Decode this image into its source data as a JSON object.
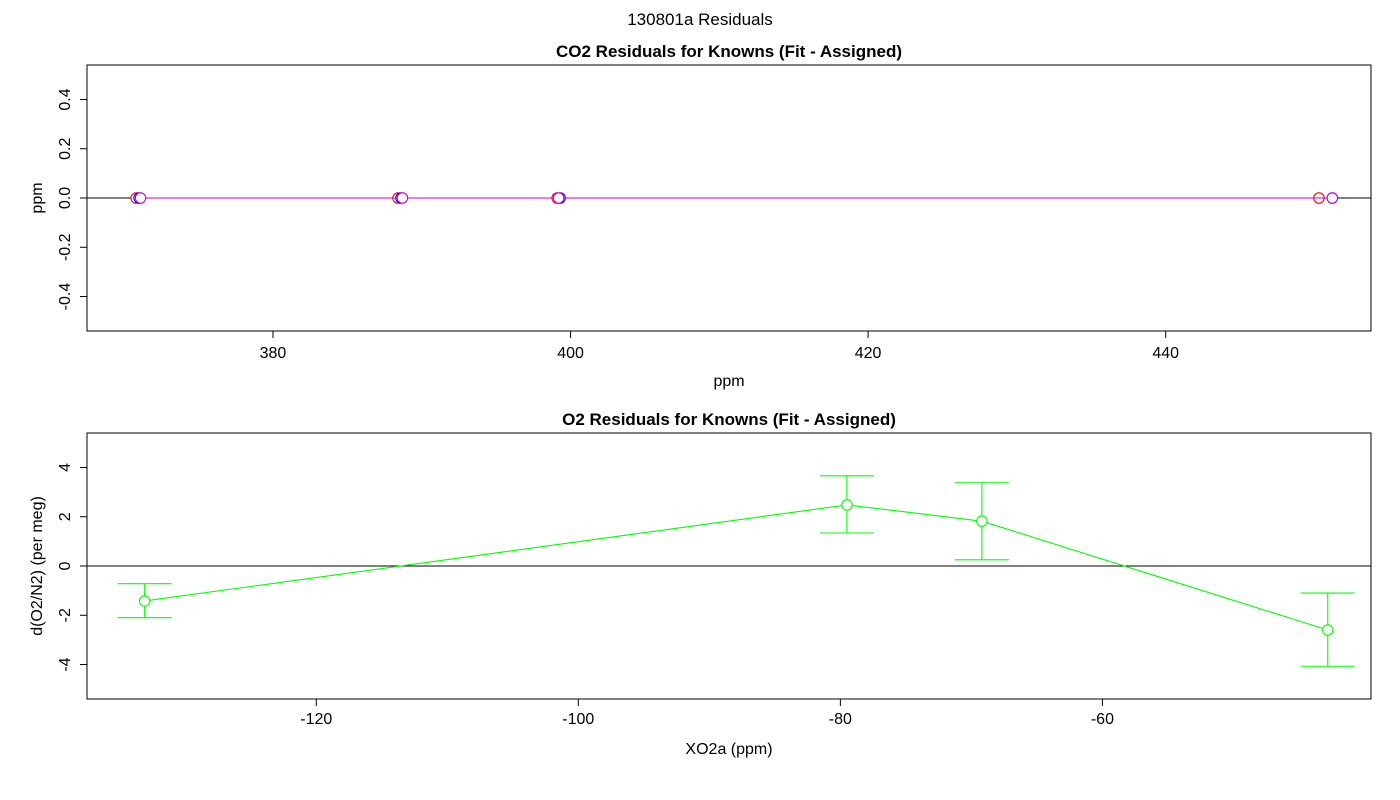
{
  "figure_title": "130801a  Residuals",
  "chart_data": [
    {
      "type": "scatter",
      "title": "CO2 Residuals for Knowns (Fit - Assigned)",
      "xlabel": "ppm",
      "ylabel": "ppm",
      "xlim": [
        367.5,
        453.8
      ],
      "ylim": [
        -0.54,
        0.54
      ],
      "xticks": [
        380,
        400,
        420,
        440
      ],
      "yticks": [
        -0.4,
        -0.2,
        0.0,
        0.2,
        0.4
      ],
      "xtick_labels": [
        "380",
        "400",
        "420",
        "440"
      ],
      "ytick_labels": [
        "-0.4",
        "-0.2",
        "0.0",
        "0.2",
        "0.4"
      ],
      "reference_line_y": 0,
      "series": [
        {
          "color": "#ff0000",
          "marker": "open-circle",
          "line": true,
          "x": [
            370.8,
            388.4,
            399.1,
            450.3
          ],
          "y": [
            0,
            0,
            0,
            0
          ]
        },
        {
          "color": "#0000ff",
          "marker": "open-circle",
          "line": true,
          "x": [
            371.0,
            388.6,
            399.3,
            451.2
          ],
          "y": [
            0,
            0,
            0,
            0
          ]
        },
        {
          "color": "#cc00cc",
          "marker": "open-circle",
          "line": true,
          "x": [
            371.1,
            388.7,
            399.2,
            451.2
          ],
          "y": [
            0,
            0,
            0,
            0
          ]
        }
      ]
    },
    {
      "type": "line",
      "title": "O2 Residuals for Knowns (Fit - Assigned)",
      "xlabel": "XO2a (ppm)",
      "ylabel": "d(O2/N2) (per meg)",
      "xlim": [
        -137.5,
        -39.5
      ],
      "ylim": [
        -5.4,
        5.4
      ],
      "xticks": [
        -120,
        -100,
        -80,
        -60
      ],
      "yticks": [
        -4,
        -2,
        0,
        2,
        4
      ],
      "xtick_labels": [
        "-120",
        "-100",
        "-80",
        "-60"
      ],
      "ytick_labels": [
        "-4",
        "-2",
        "0",
        "2",
        "4"
      ],
      "reference_line_y": 0,
      "series": [
        {
          "color": "#00ff00",
          "marker": "open-circle",
          "error_bars": true,
          "x": [
            -133.1,
            -79.5,
            -69.2,
            -42.8
          ],
          "y": [
            -1.42,
            2.48,
            1.82,
            -2.6
          ],
          "y_low": [
            -2.1,
            1.34,
            0.25,
            -4.07
          ],
          "y_high": [
            -0.72,
            3.66,
            3.38,
            -1.1
          ]
        }
      ]
    }
  ]
}
